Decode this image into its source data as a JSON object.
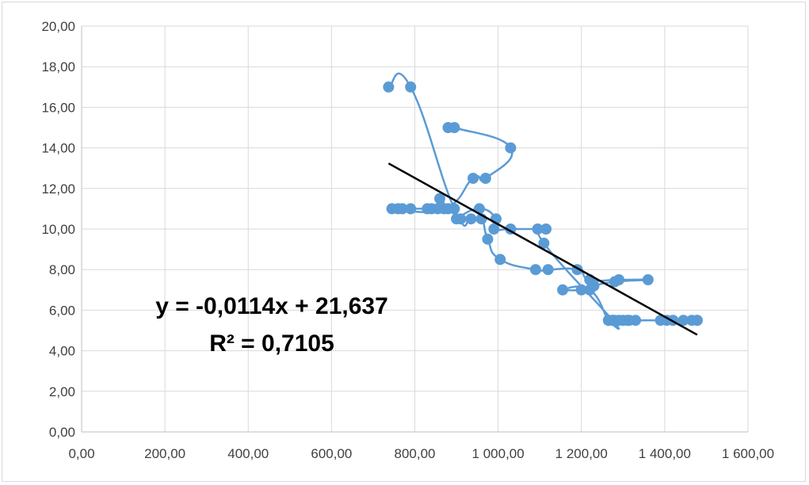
{
  "chart_data": {
    "type": "scatter",
    "title": "",
    "xlabel": "",
    "ylabel": "",
    "xlim": [
      0,
      1600
    ],
    "ylim": [
      0,
      20
    ],
    "x_ticks": [
      "0,00",
      "200,00",
      "400,00",
      "600,00",
      "800,00",
      "1 000,00",
      "1 200,00",
      "1 400,00",
      "1 600,00"
    ],
    "y_ticks": [
      "0,00",
      "2,00",
      "4,00",
      "6,00",
      "8,00",
      "10,00",
      "12,00",
      "14,00",
      "16,00",
      "18,00",
      "20,00"
    ],
    "grid": true,
    "legend": "none",
    "series": [
      {
        "color": "#5b9bd5",
        "style": "smoothed line with markers",
        "points": [
          [
            737,
            17.0
          ],
          [
            790,
            17.0
          ],
          [
            895,
            11.0
          ],
          [
            935,
            10.5
          ],
          [
            960,
            10.5
          ],
          [
            975,
            9.5
          ],
          [
            1005,
            8.5
          ],
          [
            1090,
            8.0
          ],
          [
            1120,
            8.0
          ],
          [
            1190,
            8.0
          ],
          [
            1220,
            7.5
          ],
          [
            1290,
            7.5
          ],
          [
            1360,
            7.5
          ],
          [
            1280,
            7.4
          ],
          [
            1230,
            7.2
          ],
          [
            1200,
            7.0
          ],
          [
            1155,
            7.0
          ],
          [
            1220,
            7.0
          ],
          [
            1265,
            5.5
          ],
          [
            1275,
            5.5
          ],
          [
            1290,
            5.5
          ],
          [
            1300,
            5.5
          ],
          [
            1315,
            5.5
          ],
          [
            1330,
            5.5
          ],
          [
            1405,
            5.5
          ],
          [
            1420,
            5.5
          ],
          [
            1445,
            5.5
          ],
          [
            1465,
            5.5
          ],
          [
            1478,
            5.5
          ],
          [
            1478,
            5.5
          ],
          [
            1390,
            5.5
          ],
          [
            1310,
            5.5
          ],
          [
            1280,
            5.5
          ],
          [
            1265,
            5.5
          ],
          [
            1275,
            5.5
          ],
          [
            1110,
            9.3
          ],
          [
            1115,
            10.0
          ],
          [
            1095,
            10.0
          ],
          [
            1030,
            10.0
          ],
          [
            990,
            10.0
          ],
          [
            995,
            10.5
          ],
          [
            955,
            11.0
          ],
          [
            900,
            10.5
          ],
          [
            910,
            10.5
          ],
          [
            880,
            11.0
          ],
          [
            860,
            11.5
          ],
          [
            855,
            11.0
          ],
          [
            840,
            11.0
          ],
          [
            830,
            11.0
          ],
          [
            790,
            11.0
          ],
          [
            770,
            11.0
          ],
          [
            760,
            11.0
          ],
          [
            745,
            11.0
          ],
          [
            870,
            11.0
          ],
          [
            940,
            12.5
          ],
          [
            970,
            12.5
          ],
          [
            1030,
            14.0
          ],
          [
            895,
            15.0
          ],
          [
            880,
            15.0
          ]
        ]
      }
    ],
    "trendline": {
      "type": "linear",
      "slope": -0.0114,
      "intercept": 21.637,
      "x_range": [
        737,
        1478
      ],
      "color": "#000000",
      "equation_text": "y = -0,0114x + 21,637",
      "r2_text": "R² = 0,7105"
    }
  }
}
